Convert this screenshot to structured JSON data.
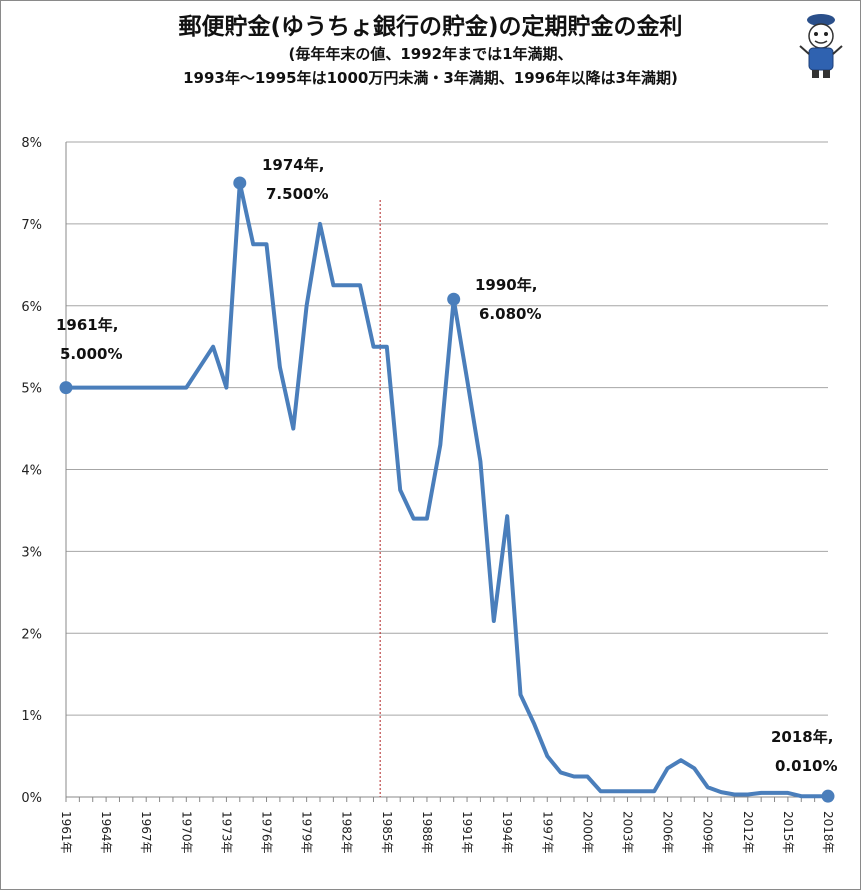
{
  "chart_data": {
    "type": "line",
    "title": "郵便貯金(ゆうちょ銀行の貯金)の定期貯金の金利",
    "subtitle_lines": [
      "(毎年年末の値、1992年までは1年満期、",
      "1993年～1995年は1000万円未満・3年満期、1996年以降は3年満期)"
    ],
    "xlabel": "",
    "ylabel": "",
    "ylim": [
      0,
      8
    ],
    "xlim": [
      1961,
      2018
    ],
    "y_ticks": [
      "0%",
      "1%",
      "2%",
      "3%",
      "4%",
      "5%",
      "6%",
      "7%",
      "8%"
    ],
    "x_tick_labels": [
      "1961年",
      "1964年",
      "1967年",
      "1970年",
      "1973年",
      "1976年",
      "1979年",
      "1982年",
      "1985年",
      "1988年",
      "1991年",
      "1994年",
      "1997年",
      "2000年",
      "2003年",
      "2006年",
      "2009年",
      "2012年",
      "2015年",
      "2018年"
    ],
    "grid": true,
    "legend": "none",
    "reference_line_x": 1984.5,
    "series": [
      {
        "color": "#4a7ebb",
        "x": [
          1961,
          1962,
          1963,
          1964,
          1965,
          1966,
          1967,
          1968,
          1969,
          1970,
          1971,
          1972,
          1973,
          1974,
          1975,
          1976,
          1977,
          1978,
          1979,
          1980,
          1981,
          1982,
          1983,
          1984,
          1985,
          1986,
          1987,
          1988,
          1989,
          1990,
          1991,
          1992,
          1993,
          1994,
          1995,
          1996,
          1997,
          1998,
          1999,
          2000,
          2001,
          2002,
          2003,
          2004,
          2005,
          2006,
          2007,
          2008,
          2009,
          2010,
          2011,
          2012,
          2013,
          2014,
          2015,
          2016,
          2017,
          2018
        ],
        "y": [
          5.0,
          5.0,
          5.0,
          5.0,
          5.0,
          5.0,
          5.0,
          5.0,
          5.0,
          5.0,
          5.25,
          5.5,
          5.0,
          7.5,
          6.75,
          6.75,
          5.25,
          4.5,
          6.0,
          7.0,
          6.25,
          6.25,
          6.25,
          5.5,
          5.5,
          3.75,
          3.4,
          3.4,
          4.3,
          6.08,
          5.1,
          4.1,
          2.15,
          3.43,
          1.25,
          0.9,
          0.5,
          0.3,
          0.25,
          0.25,
          0.07,
          0.07,
          0.07,
          0.07,
          0.07,
          0.35,
          0.45,
          0.35,
          0.12,
          0.06,
          0.03,
          0.03,
          0.05,
          0.05,
          0.05,
          0.01,
          0.01,
          0.01
        ]
      }
    ],
    "annotations": [
      {
        "x": 1961,
        "y": 5.0,
        "line1": "1961年,",
        "line2": "5.000%"
      },
      {
        "x": 1974,
        "y": 7.5,
        "line1": "1974年,",
        "line2": "7.500%"
      },
      {
        "x": 1990,
        "y": 6.08,
        "line1": "1990年,",
        "line2": "6.080%"
      },
      {
        "x": 2018,
        "y": 0.01,
        "line1": "2018年,",
        "line2": "0.010%"
      }
    ]
  }
}
